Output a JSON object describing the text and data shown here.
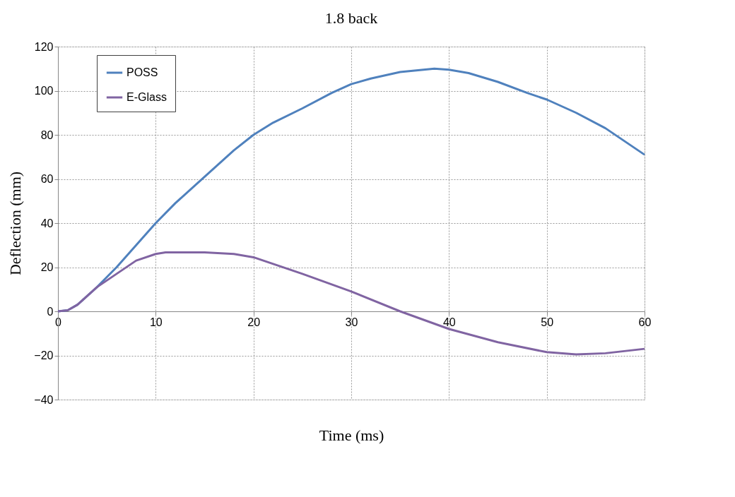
{
  "chart_data": {
    "type": "line",
    "title": "1.8 back",
    "xlabel": "Time (ms)",
    "ylabel": "Deflection (mm)",
    "xlim": [
      0,
      60
    ],
    "xticks": [
      0,
      10,
      20,
      30,
      40,
      50,
      60
    ],
    "ylim": [
      -40,
      120
    ],
    "yticks": [
      -40,
      -20,
      0,
      20,
      40,
      60,
      80,
      100,
      120
    ],
    "grid": true,
    "legend": "top left",
    "marker": "none",
    "line_style": "solid",
    "series": [
      {
        "name": "POSS",
        "color": "#4f81bd",
        "x": [
          0,
          1,
          2,
          3,
          4,
          5,
          6,
          8,
          10,
          12,
          14,
          16,
          18,
          20,
          22,
          25,
          28,
          30,
          32,
          35,
          38.5,
          40,
          42,
          45,
          48,
          50,
          53,
          56,
          60
        ],
        "values": [
          0,
          0.5,
          3,
          7,
          11,
          15.5,
          20,
          30,
          40,
          49,
          57,
          65,
          73,
          80,
          85.5,
          92,
          99,
          103,
          105.5,
          108.5,
          110,
          109.5,
          108,
          104,
          99,
          96,
          90,
          83,
          71
        ]
      },
      {
        "name": "E-Glass",
        "color": "#8064a2",
        "x": [
          0,
          1,
          2,
          3,
          4,
          6,
          8,
          10,
          11,
          15,
          18,
          20,
          25,
          30,
          35,
          40,
          45,
          50,
          53,
          56,
          60
        ],
        "values": [
          0,
          0.5,
          3,
          7,
          11,
          17,
          23,
          26,
          26.7,
          26.7,
          26,
          24.5,
          17,
          9,
          0,
          -8,
          -14,
          -18.5,
          -19.5,
          -19,
          -17
        ]
      }
    ]
  }
}
